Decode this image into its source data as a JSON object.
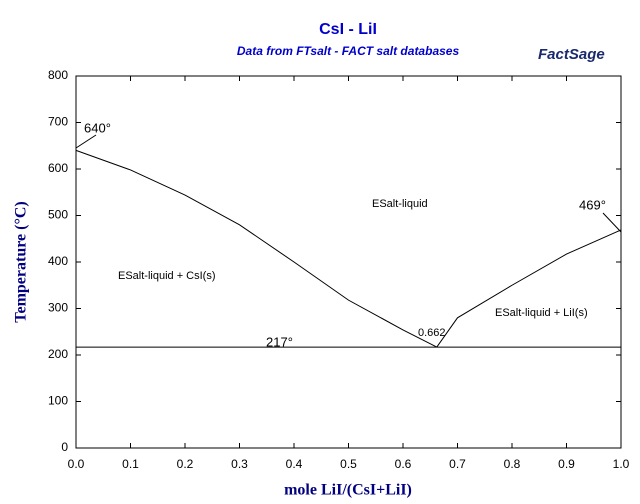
{
  "chart_data": {
    "type": "line",
    "title": "CsI - LiI",
    "subtitle": "Data from FTsalt - FACT salt databases",
    "logo": "FactSage",
    "x_label": "mole LiI/(CsI+LiI)",
    "y_label": "Temperature (°C)",
    "xlim": [
      0,
      1
    ],
    "ylim": [
      0,
      800
    ],
    "xticks": [
      {
        "value": 0,
        "label": "0.0"
      },
      0.1,
      0.2,
      0.3,
      0.4,
      0.5,
      0.6,
      0.7,
      0.8,
      0.9,
      {
        "value": 1,
        "label": "1.0"
      }
    ],
    "yticks": [
      0,
      100,
      200,
      300,
      400,
      500,
      600,
      700,
      800
    ],
    "series": [
      {
        "color": "#000000",
        "x": [
          0,
          0.1,
          0.2,
          0.3,
          0.4,
          0.5,
          0.6,
          0.662
        ],
        "values": [
          640,
          598,
          544,
          480,
          400,
          318,
          254,
          217
        ]
      },
      {
        "color": "#000000",
        "x": [
          0.662,
          0.7,
          0.8,
          0.9,
          1
        ],
        "values": [
          217,
          280,
          350,
          417,
          469
        ]
      },
      {
        "color": "#000000",
        "x": [
          0,
          1
        ],
        "values": [
          217,
          217
        ]
      }
    ],
    "annotations": [
      "640°",
      "469°",
      "217°",
      "0.662",
      "ESalt-liquid",
      "ESalt-liquid + CsI(s)",
      "ESalt-liquid + LiI(s)"
    ]
  }
}
